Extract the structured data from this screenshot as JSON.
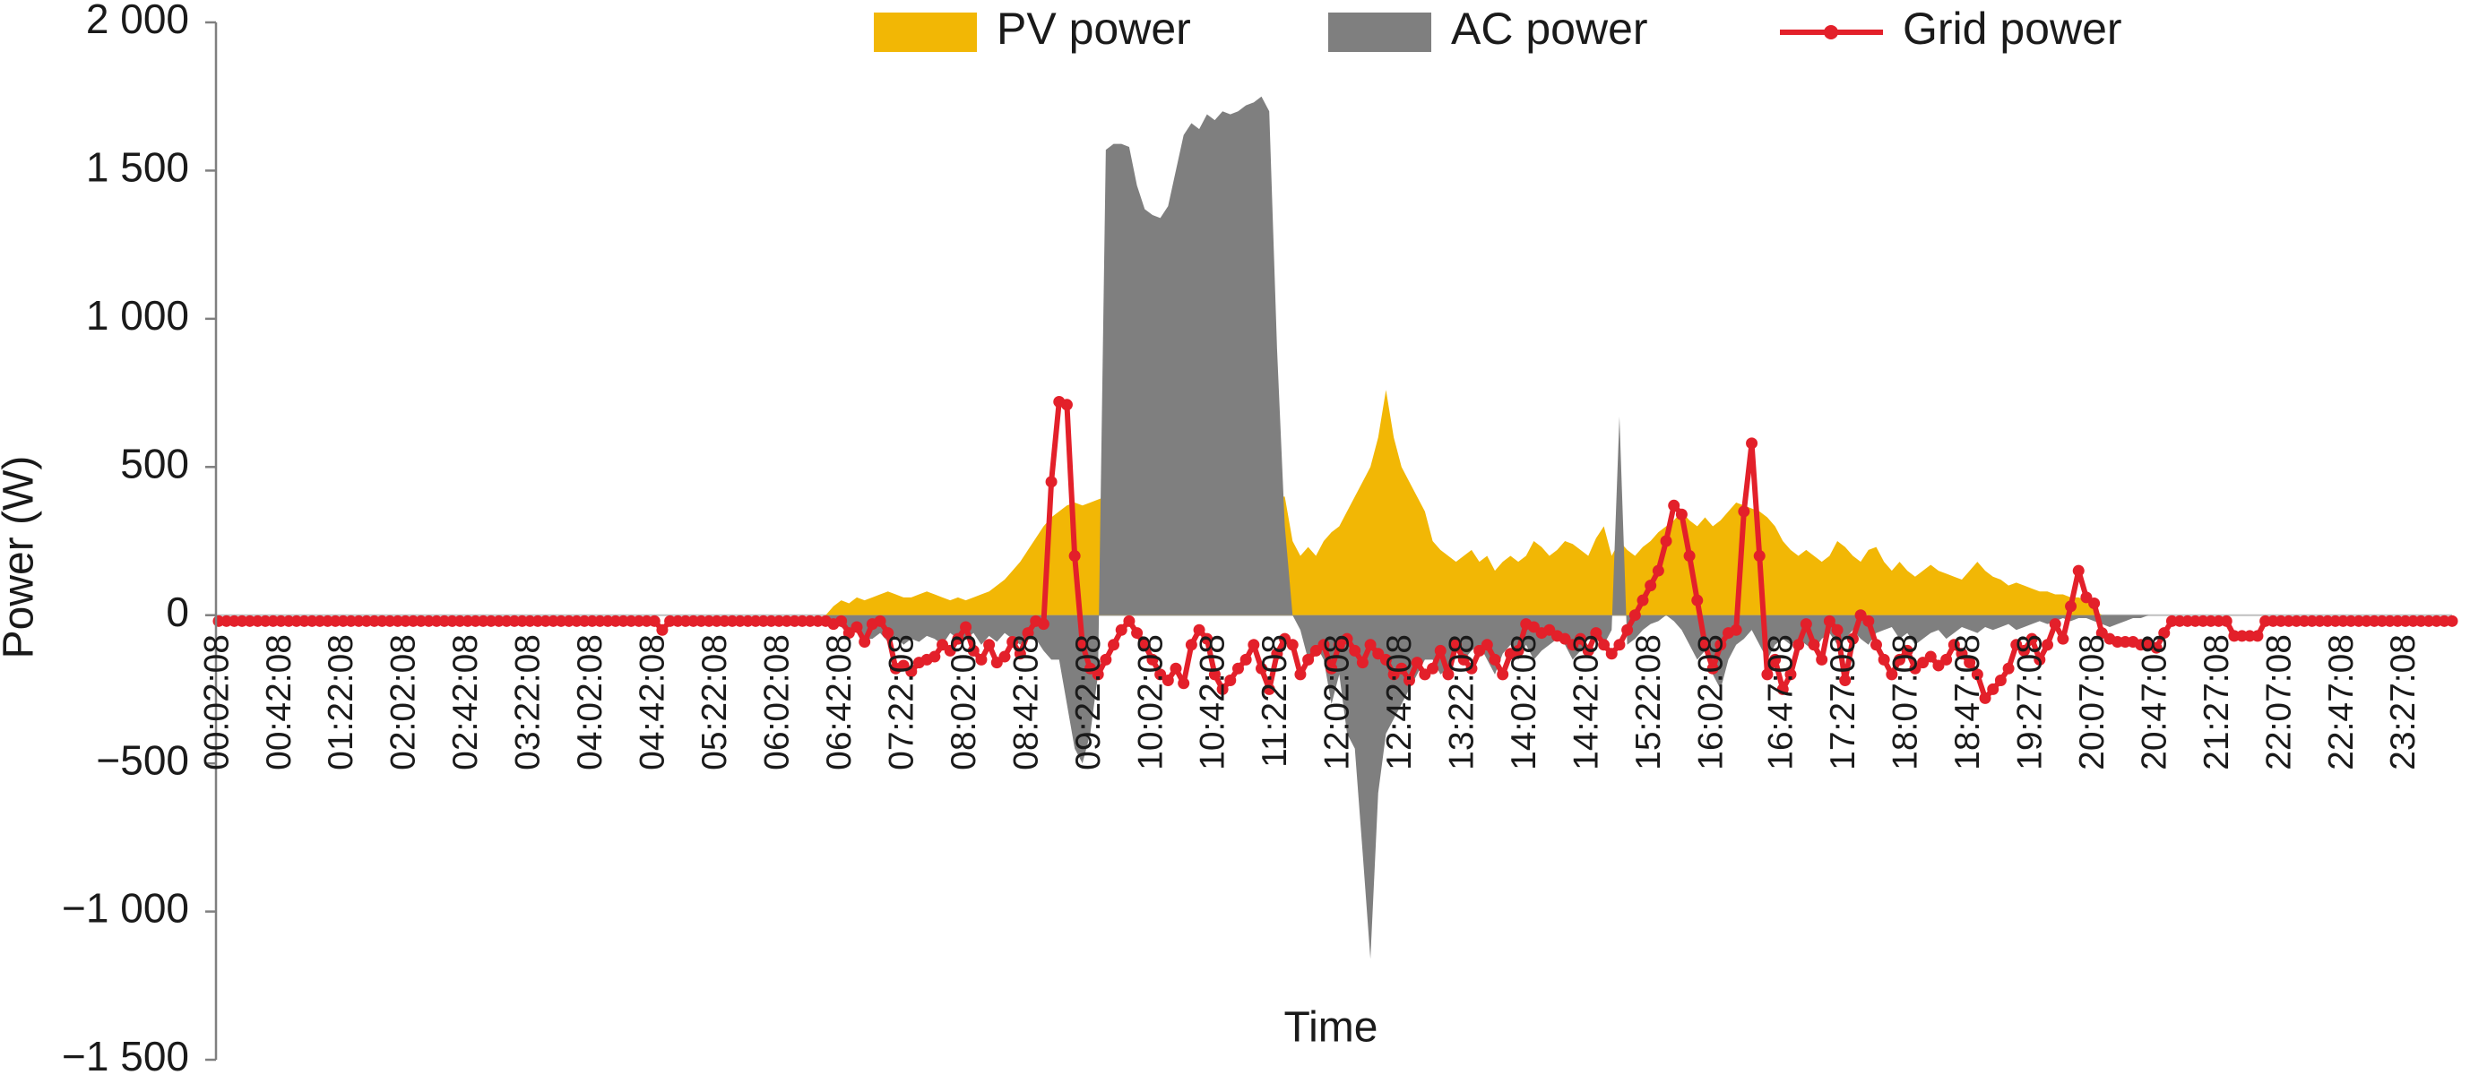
{
  "chart_data": {
    "type": "area-line",
    "x_label": "Time",
    "y_label": "Power (W)",
    "legend": "top",
    "ylim": [
      -1500,
      2000
    ],
    "yticks": [
      {
        "value": 2000,
        "label": "2 000"
      },
      {
        "value": 1500,
        "label": "1 500"
      },
      {
        "value": 1000,
        "label": "1 000"
      },
      500,
      0,
      {
        "value": -500,
        "label": "−500"
      },
      {
        "value": -1000,
        "label": "−1 000"
      },
      {
        "value": -1500,
        "label": "−1 500"
      }
    ],
    "categories": [
      "00:02:08",
      null,
      null,
      null,
      null,
      null,
      null,
      null,
      "00:42:08",
      null,
      null,
      null,
      null,
      null,
      null,
      null,
      "01:22:08",
      null,
      null,
      null,
      null,
      null,
      null,
      null,
      "02:02:08",
      null,
      null,
      null,
      null,
      null,
      null,
      null,
      "02:42:08",
      null,
      null,
      null,
      null,
      null,
      null,
      null,
      "03:22:08",
      null,
      null,
      null,
      null,
      null,
      null,
      null,
      "04:02:08",
      null,
      null,
      null,
      null,
      null,
      null,
      null,
      "04:42:08",
      null,
      null,
      null,
      null,
      null,
      null,
      null,
      "05:22:08",
      null,
      null,
      null,
      null,
      null,
      null,
      null,
      "06:02:08",
      null,
      null,
      null,
      null,
      null,
      null,
      null,
      "06:42:08",
      null,
      null,
      null,
      null,
      null,
      null,
      null,
      "07:22:08",
      null,
      null,
      null,
      null,
      null,
      null,
      null,
      "08:02:08",
      null,
      null,
      null,
      null,
      null,
      null,
      null,
      "08:42:08",
      null,
      null,
      null,
      null,
      null,
      null,
      null,
      "09:22:08",
      null,
      null,
      null,
      null,
      null,
      null,
      null,
      "10:02:08",
      null,
      null,
      null,
      null,
      null,
      null,
      null,
      "10:42:08",
      null,
      null,
      null,
      null,
      null,
      null,
      null,
      "11:22:08",
      null,
      null,
      null,
      null,
      null,
      null,
      null,
      "12:02:08",
      null,
      null,
      null,
      null,
      null,
      null,
      null,
      "12:42:08",
      null,
      null,
      null,
      null,
      null,
      null,
      null,
      "13:22:08",
      null,
      null,
      null,
      null,
      null,
      null,
      null,
      "14:02:08",
      null,
      null,
      null,
      null,
      null,
      null,
      null,
      "14:42:08",
      null,
      null,
      null,
      null,
      null,
      null,
      null,
      "15:22:08",
      null,
      null,
      null,
      null,
      null,
      null,
      null,
      "16:02:08",
      null,
      null,
      null,
      null,
      null,
      null,
      null,
      null,
      "16:47:08",
      null,
      null,
      null,
      null,
      null,
      null,
      null,
      "17:27:08",
      null,
      null,
      null,
      null,
      null,
      null,
      null,
      "18:07:08",
      null,
      null,
      null,
      null,
      null,
      null,
      null,
      "18:47:08",
      null,
      null,
      null,
      null,
      null,
      null,
      null,
      "19:27:08",
      null,
      null,
      null,
      null,
      null,
      null,
      null,
      "20:07:08",
      null,
      null,
      null,
      null,
      null,
      null,
      null,
      "20:47:08",
      null,
      null,
      null,
      null,
      null,
      null,
      null,
      "21:27:08",
      null,
      null,
      null,
      null,
      null,
      null,
      null,
      "22:07:08",
      null,
      null,
      null,
      null,
      null,
      null,
      null,
      "22:47:08",
      null,
      null,
      null,
      null,
      null,
      null,
      null,
      "23:27:08",
      null,
      null,
      null,
      null,
      null,
      null
    ],
    "series": [
      {
        "name": "PV power",
        "color": "#f2b705",
        "style": "area",
        "values": [
          0,
          0,
          0,
          0,
          0,
          0,
          0,
          0,
          0,
          0,
          0,
          0,
          0,
          0,
          0,
          0,
          0,
          0,
          0,
          0,
          0,
          0,
          0,
          0,
          0,
          0,
          0,
          0,
          0,
          0,
          0,
          0,
          0,
          0,
          0,
          0,
          0,
          0,
          0,
          0,
          0,
          0,
          0,
          0,
          0,
          0,
          0,
          0,
          0,
          0,
          0,
          0,
          0,
          0,
          0,
          0,
          0,
          0,
          0,
          0,
          0,
          0,
          0,
          0,
          0,
          0,
          0,
          0,
          0,
          0,
          0,
          0,
          0,
          0,
          0,
          0,
          0,
          0,
          0,
          30,
          50,
          40,
          60,
          50,
          60,
          70,
          80,
          70,
          60,
          60,
          70,
          80,
          70,
          60,
          50,
          60,
          50,
          60,
          70,
          80,
          100,
          120,
          150,
          180,
          220,
          260,
          300,
          330,
          350,
          370,
          380,
          370,
          380,
          390,
          400,
          400,
          400,
          400,
          400,
          400,
          400,
          400,
          400,
          400,
          400,
          400,
          400,
          400,
          400,
          400,
          400,
          400,
          400,
          400,
          400,
          400,
          400,
          400,
          250,
          200,
          230,
          200,
          250,
          280,
          300,
          350,
          400,
          450,
          500,
          600,
          760,
          600,
          500,
          450,
          400,
          350,
          250,
          220,
          200,
          180,
          200,
          220,
          180,
          200,
          150,
          180,
          200,
          180,
          200,
          250,
          230,
          200,
          220,
          250,
          240,
          220,
          200,
          260,
          300,
          200,
          250,
          220,
          200,
          230,
          250,
          280,
          300,
          320,
          350,
          320,
          300,
          330,
          300,
          320,
          350,
          380,
          370,
          360,
          350,
          330,
          300,
          250,
          220,
          200,
          220,
          200,
          180,
          200,
          250,
          230,
          200,
          180,
          220,
          230,
          180,
          150,
          180,
          150,
          130,
          150,
          170,
          150,
          140,
          130,
          120,
          150,
          180,
          150,
          130,
          120,
          100,
          110,
          100,
          90,
          80,
          80,
          70,
          70,
          60,
          60,
          50,
          20,
          0,
          0,
          0,
          0,
          0,
          0,
          0,
          0,
          0,
          0,
          0,
          0,
          0,
          0,
          0,
          0,
          0,
          0,
          0,
          0,
          0,
          0,
          0,
          0,
          0,
          0,
          0,
          0,
          0,
          0,
          0,
          0,
          0,
          0,
          0,
          0,
          0,
          0,
          0,
          0,
          0,
          0,
          0,
          0,
          0,
          0
        ]
      },
      {
        "name": "AC power",
        "color": "#7f7f7f",
        "style": "area",
        "values": [
          0,
          0,
          0,
          0,
          0,
          0,
          0,
          0,
          0,
          0,
          0,
          0,
          0,
          0,
          0,
          0,
          0,
          0,
          0,
          0,
          0,
          0,
          0,
          0,
          0,
          0,
          0,
          0,
          0,
          0,
          0,
          0,
          0,
          0,
          0,
          0,
          0,
          0,
          0,
          0,
          0,
          0,
          0,
          0,
          0,
          0,
          0,
          0,
          0,
          0,
          0,
          0,
          0,
          0,
          0,
          0,
          0,
          0,
          0,
          0,
          0,
          0,
          0,
          0,
          0,
          0,
          0,
          0,
          0,
          0,
          0,
          0,
          0,
          0,
          0,
          0,
          0,
          0,
          0,
          -20,
          -40,
          -60,
          -50,
          -80,
          -80,
          -60,
          -90,
          -70,
          -100,
          -80,
          -90,
          -70,
          -80,
          -100,
          -60,
          -80,
          -80,
          -60,
          -100,
          -70,
          -90,
          -60,
          -80,
          -100,
          -60,
          -80,
          -120,
          -150,
          -150,
          -300,
          -450,
          -500,
          -400,
          -200,
          1570,
          1590,
          1590,
          1580,
          1450,
          1370,
          1350,
          1340,
          1380,
          1500,
          1620,
          1660,
          1640,
          1690,
          1670,
          1700,
          1690,
          1700,
          1720,
          1730,
          1750,
          1700,
          900,
          300,
          0,
          -50,
          -150,
          -100,
          -150,
          -300,
          -200,
          -400,
          -450,
          -800,
          -1160,
          -600,
          -400,
          -350,
          -300,
          -250,
          -200,
          -150,
          -150,
          -200,
          -180,
          -100,
          -150,
          -120,
          -100,
          -150,
          -200,
          -130,
          -100,
          -150,
          -100,
          -150,
          -120,
          -100,
          -80,
          -100,
          -150,
          -120,
          -80,
          -60,
          -100,
          -50,
          670,
          -100,
          -80,
          -50,
          -30,
          -20,
          0,
          -20,
          -50,
          -100,
          -150,
          -120,
          -200,
          -250,
          -150,
          -100,
          -80,
          -50,
          -100,
          -150,
          -100,
          -80,
          -100,
          -80,
          -100,
          -120,
          -80,
          -60,
          -100,
          -80,
          -50,
          -80,
          -100,
          -60,
          -50,
          -40,
          -80,
          -60,
          -100,
          -80,
          -60,
          -50,
          -80,
          -60,
          -40,
          -50,
          -60,
          -40,
          -50,
          -40,
          -30,
          -50,
          -40,
          -30,
          -20,
          -30,
          -20,
          -10,
          -20,
          -10,
          -10,
          -20,
          -30,
          -40,
          -30,
          -20,
          -10,
          -10,
          0,
          0,
          0,
          0,
          0,
          0,
          0,
          0,
          0,
          0,
          0,
          0,
          0,
          0,
          0,
          0,
          0,
          0,
          0,
          0,
          0,
          0,
          0,
          0,
          0,
          0,
          0,
          0,
          0,
          0,
          0,
          0,
          0,
          0,
          0,
          0,
          0,
          0,
          0,
          0
        ]
      },
      {
        "name": "Grid power",
        "color": "#e3202a",
        "style": "line",
        "values": [
          -20,
          -20,
          -20,
          -20,
          -20,
          -20,
          -20,
          -20,
          -20,
          -20,
          -20,
          -20,
          -20,
          -20,
          -20,
          -20,
          -20,
          -20,
          -20,
          -20,
          -20,
          -20,
          -20,
          -20,
          -20,
          -20,
          -20,
          -20,
          -20,
          -20,
          -20,
          -20,
          -20,
          -20,
          -20,
          -20,
          -20,
          -20,
          -20,
          -20,
          -20,
          -20,
          -20,
          -20,
          -20,
          -20,
          -20,
          -20,
          -20,
          -20,
          -20,
          -20,
          -20,
          -20,
          -20,
          -20,
          -20,
          -50,
          -20,
          -20,
          -20,
          -20,
          -20,
          -20,
          -20,
          -20,
          -20,
          -20,
          -20,
          -20,
          -20,
          -20,
          -20,
          -20,
          -20,
          -20,
          -20,
          -20,
          -20,
          -30,
          -20,
          -60,
          -40,
          -90,
          -30,
          -20,
          -60,
          -180,
          -170,
          -190,
          -160,
          -150,
          -140,
          -100,
          -120,
          -80,
          -40,
          -120,
          -150,
          -100,
          -160,
          -140,
          -90,
          -130,
          -60,
          -20,
          -30,
          450,
          720,
          710,
          200,
          -100,
          -180,
          -200,
          -150,
          -100,
          -50,
          -20,
          -60,
          -100,
          -150,
          -200,
          -220,
          -180,
          -230,
          -100,
          -50,
          -80,
          -200,
          -250,
          -220,
          -180,
          -150,
          -100,
          -180,
          -250,
          -130,
          -80,
          -100,
          -200,
          -150,
          -120,
          -100,
          -180,
          -100,
          -80,
          -120,
          -160,
          -100,
          -130,
          -150,
          -200,
          -180,
          -220,
          -160,
          -200,
          -180,
          -120,
          -200,
          -100,
          -150,
          -180,
          -120,
          -100,
          -150,
          -200,
          -130,
          -120,
          -30,
          -40,
          -60,
          -50,
          -70,
          -80,
          -100,
          -80,
          -120,
          -60,
          -100,
          -130,
          -100,
          -50,
          0,
          50,
          100,
          150,
          250,
          370,
          340,
          200,
          50,
          -100,
          -180,
          -100,
          -60,
          -50,
          350,
          580,
          200,
          -200,
          -150,
          -250,
          -200,
          -100,
          -30,
          -100,
          -150,
          -20,
          -50,
          -220,
          -80,
          0,
          -20,
          -100,
          -150,
          -200,
          -150,
          -120,
          -180,
          -160,
          -140,
          -170,
          -150,
          -100,
          -130,
          -160,
          -200,
          -280,
          -250,
          -220,
          -180,
          -100,
          -120,
          -80,
          -150,
          -100,
          -30,
          -80,
          30,
          150,
          60,
          40,
          -60,
          -80,
          -90,
          -90,
          -90,
          -100,
          -100,
          -110,
          -60,
          -20,
          -20,
          -20,
          -20,
          -20,
          -20,
          -20,
          -20,
          -70,
          -70,
          -70,
          -70,
          -20,
          -20,
          -20,
          -20,
          -20,
          -20,
          -20,
          -20,
          -20,
          -20,
          -20,
          -20,
          -20,
          -20,
          -20,
          -20,
          -20,
          -20,
          -20,
          -20,
          -20,
          -20,
          -20,
          -20,
          -20
        ]
      }
    ]
  }
}
